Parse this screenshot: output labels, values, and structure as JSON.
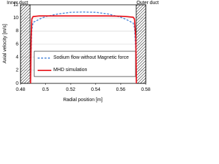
{
  "chart_data": {
    "type": "line",
    "xlabel": "Radial position [m]",
    "ylabel": "Axial velocity [m/s]",
    "annotations": [
      "Inner duct",
      "Outer duct"
    ],
    "x": [
      0.488,
      0.4885,
      0.489,
      0.49,
      0.495,
      0.5,
      0.51,
      0.52,
      0.53,
      0.54,
      0.55,
      0.56,
      0.565,
      0.57,
      0.571,
      0.572,
      0.5725
    ],
    "series": [
      {
        "name": "Sodium flow without Magnetic force",
        "color": "#4a86d8",
        "dash": true,
        "values": [
          0,
          5,
          8.2,
          9.3,
          9.8,
          10.2,
          10.6,
          10.85,
          10.9,
          10.85,
          10.6,
          10.1,
          9.7,
          9.2,
          8.5,
          5,
          0
        ]
      },
      {
        "name": "MHD simulation",
        "color": "#e8141c",
        "dash": false,
        "values": [
          0,
          7,
          9.8,
          10.2,
          10.3,
          10.3,
          10.3,
          10.3,
          10.3,
          10.3,
          10.3,
          10.25,
          10.2,
          10.1,
          9.8,
          7,
          0
        ]
      }
    ],
    "xlim": [
      0.48,
      0.58
    ],
    "xticks": [
      0.48,
      0.5,
      0.52,
      0.54,
      0.56,
      0.58
    ],
    "ylim": [
      0,
      12
    ],
    "yticks": [
      0,
      2,
      4,
      6,
      8,
      10,
      12
    ],
    "grid": true
  }
}
